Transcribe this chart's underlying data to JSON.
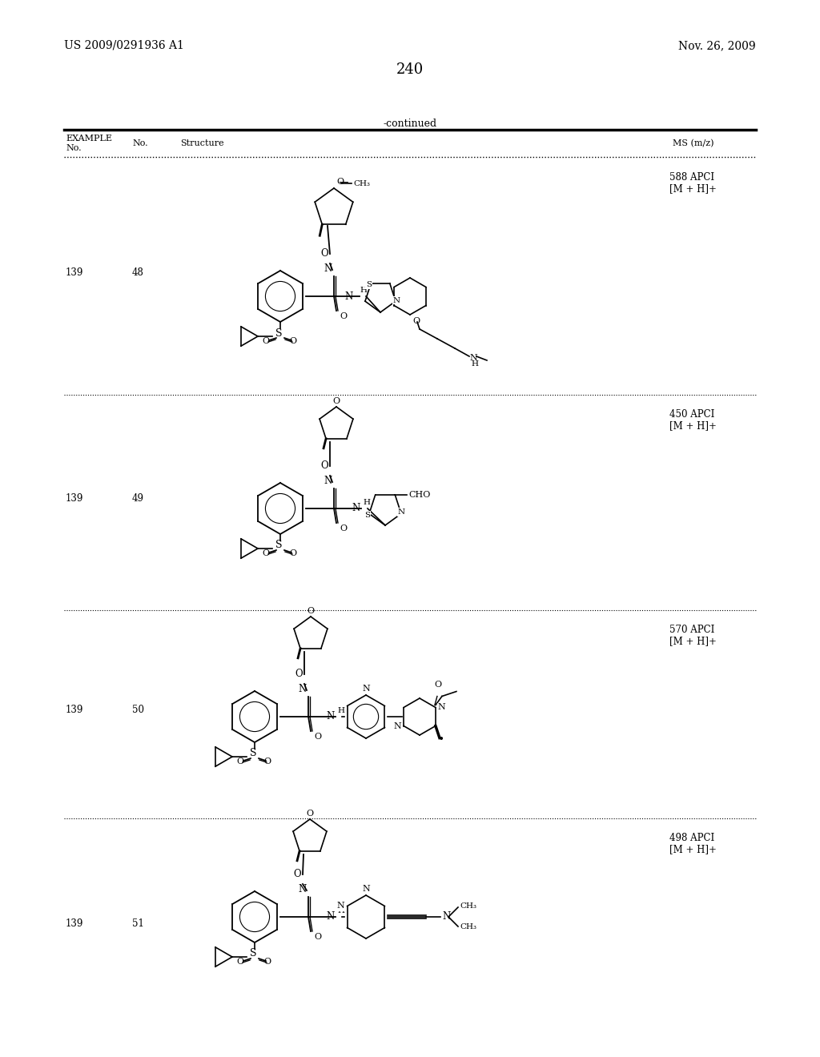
{
  "page_number": "240",
  "patent_number": "US 2009/0291936 A1",
  "date": "Nov. 26, 2009",
  "continued_label": "-continued",
  "rows": [
    {
      "ex_no": "139",
      "no": "48",
      "ms": "588 APCI\n[M + H]+"
    },
    {
      "ex_no": "139",
      "no": "49",
      "ms": "450 APCI\n[M + H]+"
    },
    {
      "ex_no": "139",
      "no": "50",
      "ms": "570 APCI\n[M + H]+"
    },
    {
      "ex_no": "139",
      "no": "51",
      "ms": "498 APCI\n[M + H]+"
    }
  ],
  "row_tops": [
    197,
    493,
    762,
    1022
  ],
  "row_bottoms": [
    493,
    762,
    1022,
    1295
  ],
  "bg_color": "#ffffff",
  "text_color": "#000000"
}
